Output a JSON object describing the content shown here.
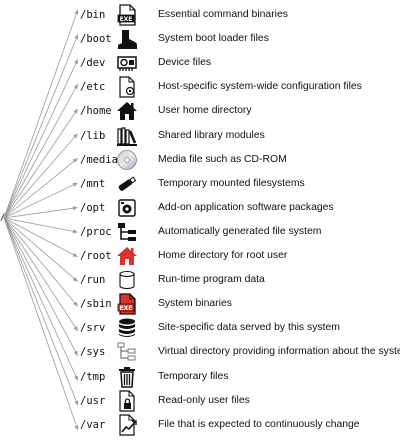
{
  "root": "/",
  "entries": [
    {
      "path": "/bin",
      "icon": "exe-file-icon",
      "desc": "Essential command binaries"
    },
    {
      "path": "/boot",
      "icon": "boot-icon",
      "desc": "System boot loader files"
    },
    {
      "path": "/dev",
      "icon": "device-card-icon",
      "desc": "Device files"
    },
    {
      "path": "/etc",
      "icon": "config-file-icon",
      "desc": "Host-specific system-wide configuration files"
    },
    {
      "path": "/home",
      "icon": "home-icon",
      "desc": "User home directory"
    },
    {
      "path": "/lib",
      "icon": "library-books-icon",
      "desc": "Shared library modules"
    },
    {
      "path": "/media",
      "icon": "cd-rom-icon",
      "desc": "Media file such as CD-ROM"
    },
    {
      "path": "/mnt",
      "icon": "usb-drive-icon",
      "desc": "Temporary mounted filesystems"
    },
    {
      "path": "/opt",
      "icon": "package-icon",
      "desc": "Add-on application software packages"
    },
    {
      "path": "/proc",
      "icon": "file-tree-icon",
      "desc": "Automatically generated file system"
    },
    {
      "path": "/root",
      "icon": "red-home-icon",
      "desc": "Home directory for root user"
    },
    {
      "path": "/run",
      "icon": "cylinder-icon",
      "desc": "Run-time program data"
    },
    {
      "path": "/sbin",
      "icon": "red-exe-file-icon",
      "desc": "System binaries"
    },
    {
      "path": "/srv",
      "icon": "database-icon",
      "desc": "Site-specific data served by this system"
    },
    {
      "path": "/sys",
      "icon": "folder-tree-icon",
      "desc": "Virtual directory providing information about the system"
    },
    {
      "path": "/tmp",
      "icon": "trash-icon",
      "desc": "Temporary files"
    },
    {
      "path": "/usr",
      "icon": "locked-file-icon",
      "desc": "Read-only user files"
    },
    {
      "path": "/var",
      "icon": "chart-file-icon",
      "desc": "File that is expected to continuously change"
    }
  ],
  "exe_label": "EXE"
}
